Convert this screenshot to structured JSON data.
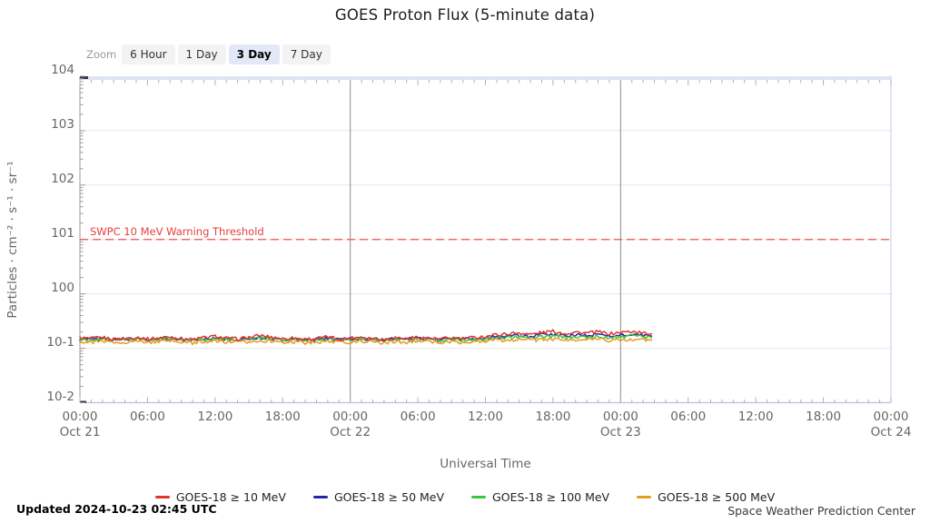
{
  "title": "GOES Proton Flux (5-minute data)",
  "toolbar": {
    "zoom_label": "Zoom",
    "options": [
      {
        "label": "6 Hour",
        "selected": false
      },
      {
        "label": "1 Day",
        "selected": false
      },
      {
        "label": "3 Day",
        "selected": true
      },
      {
        "label": "7 Day",
        "selected": false
      }
    ]
  },
  "yaxis": {
    "title": "Particles · cm⁻² · s⁻¹ · sr⁻¹",
    "tick_labels": [
      "104",
      "103",
      "102",
      "101",
      "100",
      "10-1",
      "10-2"
    ]
  },
  "xaxis": {
    "title": "Universal Time",
    "time_ticks": [
      "00:00",
      "06:00",
      "12:00",
      "18:00",
      "00:00",
      "06:00",
      "12:00",
      "18:00",
      "00:00",
      "06:00",
      "12:00",
      "18:00",
      "00:00"
    ],
    "date_ticks": [
      {
        "tick": 0,
        "label": "Oct 21"
      },
      {
        "tick": 4,
        "label": "Oct 22"
      },
      {
        "tick": 8,
        "label": "Oct 23"
      },
      {
        "tick": 12,
        "label": "Oct 24"
      }
    ]
  },
  "threshold_label": "SWPC 10 MeV Warning Threshold",
  "legend": [
    {
      "label": "GOES-18 ≥ 10 MeV",
      "color": "#e0352b"
    },
    {
      "label": "GOES-18 ≥ 50 MeV",
      "color": "#2525b2"
    },
    {
      "label": "GOES-18 ≥ 100 MeV",
      "color": "#3ec53e"
    },
    {
      "label": "GOES-18 ≥ 500 MeV",
      "color": "#e89a20"
    }
  ],
  "footer": {
    "updated": "Updated 2024-10-23 02:45 UTC",
    "source": "Space Weather Prediction Center"
  },
  "colors": {
    "grid": "#e6e6e6",
    "day_line": "#8a8a8a",
    "axis_left": "#9a9aa0",
    "axis_bottom": "#b9c2da",
    "top_band": "#dee4f4",
    "right_border": "#ccd5ec",
    "x_tick": "#a9b0c4",
    "corner_mark": "#3a3a3a",
    "threshold": "#f25050"
  },
  "chart_data": {
    "type": "line",
    "title": "GOES Proton Flux (5-minute data)",
    "xlabel": "Universal Time",
    "ylabel": "Particles · cm⁻² · s⁻¹ · sr⁻¹",
    "y_scale": "log",
    "ylim": [
      0.01,
      10000
    ],
    "grid": "horizontal-major",
    "legend_position": "bottom",
    "x_start_utc": "2024-10-21 00:00",
    "x_end_utc": "2024-10-24 00:00",
    "x_total_hours": 72,
    "x_tick_step_hours": 6,
    "day_line_hours": [
      24,
      48
    ],
    "threshold": {
      "label": "SWPC 10 MeV Warning Threshold",
      "value": 10
    },
    "x_hours": [
      0,
      1,
      2,
      3,
      4,
      5,
      6,
      7,
      8,
      9,
      10,
      11,
      12,
      13,
      14,
      15,
      16,
      17,
      18,
      19,
      20,
      21,
      22,
      23,
      24,
      25,
      26,
      27,
      28,
      29,
      30,
      31,
      32,
      33,
      34,
      35,
      36,
      37,
      38,
      39,
      40,
      41,
      42,
      43,
      44,
      45,
      46,
      47,
      48,
      49,
      50,
      50.75
    ],
    "series": [
      {
        "name": "GOES-18 ≥ 10 MeV",
        "color": "#e0352b",
        "seed": 1,
        "values": [
          0.155,
          0.15,
          0.158,
          0.146,
          0.152,
          0.16,
          0.148,
          0.155,
          0.163,
          0.15,
          0.145,
          0.157,
          0.166,
          0.152,
          0.148,
          0.158,
          0.172,
          0.16,
          0.15,
          0.155,
          0.147,
          0.152,
          0.16,
          0.148,
          0.154,
          0.162,
          0.151,
          0.146,
          0.157,
          0.15,
          0.16,
          0.152,
          0.148,
          0.156,
          0.15,
          0.158,
          0.165,
          0.178,
          0.185,
          0.192,
          0.18,
          0.195,
          0.205,
          0.188,
          0.198,
          0.19,
          0.2,
          0.185,
          0.195,
          0.205,
          0.19,
          0.185
        ]
      },
      {
        "name": "GOES-18 ≥ 50 MeV",
        "color": "#2525b2",
        "seed": 2,
        "values": [
          0.148,
          0.145,
          0.15,
          0.143,
          0.147,
          0.152,
          0.144,
          0.149,
          0.153,
          0.146,
          0.142,
          0.15,
          0.155,
          0.147,
          0.144,
          0.15,
          0.158,
          0.152,
          0.146,
          0.149,
          0.143,
          0.147,
          0.152,
          0.144,
          0.148,
          0.153,
          0.146,
          0.142,
          0.15,
          0.145,
          0.152,
          0.147,
          0.143,
          0.149,
          0.145,
          0.15,
          0.155,
          0.162,
          0.168,
          0.172,
          0.165,
          0.175,
          0.18,
          0.17,
          0.176,
          0.172,
          0.178,
          0.168,
          0.174,
          0.18,
          0.172,
          0.168
        ]
      },
      {
        "name": "GOES-18 ≥ 100 MeV",
        "color": "#3ec53e",
        "seed": 3,
        "values": [
          0.145,
          0.142,
          0.147,
          0.14,
          0.144,
          0.148,
          0.141,
          0.146,
          0.149,
          0.143,
          0.139,
          0.146,
          0.151,
          0.144,
          0.141,
          0.146,
          0.153,
          0.148,
          0.142,
          0.145,
          0.14,
          0.143,
          0.148,
          0.141,
          0.144,
          0.149,
          0.143,
          0.139,
          0.146,
          0.142,
          0.148,
          0.144,
          0.14,
          0.145,
          0.142,
          0.146,
          0.15,
          0.155,
          0.158,
          0.162,
          0.155,
          0.164,
          0.168,
          0.158,
          0.163,
          0.16,
          0.165,
          0.156,
          0.161,
          0.167,
          0.16,
          0.156
        ]
      },
      {
        "name": "GOES-18 ≥ 500 MeV",
        "color": "#e89a20",
        "seed": 4,
        "values": [
          0.132,
          0.129,
          0.134,
          0.127,
          0.131,
          0.135,
          0.128,
          0.133,
          0.136,
          0.13,
          0.126,
          0.133,
          0.138,
          0.131,
          0.128,
          0.133,
          0.14,
          0.135,
          0.129,
          0.132,
          0.127,
          0.13,
          0.135,
          0.128,
          0.131,
          0.136,
          0.13,
          0.126,
          0.133,
          0.129,
          0.135,
          0.131,
          0.127,
          0.132,
          0.129,
          0.133,
          0.136,
          0.14,
          0.142,
          0.145,
          0.139,
          0.146,
          0.148,
          0.142,
          0.145,
          0.143,
          0.147,
          0.14,
          0.144,
          0.148,
          0.142,
          0.14
        ]
      }
    ]
  }
}
